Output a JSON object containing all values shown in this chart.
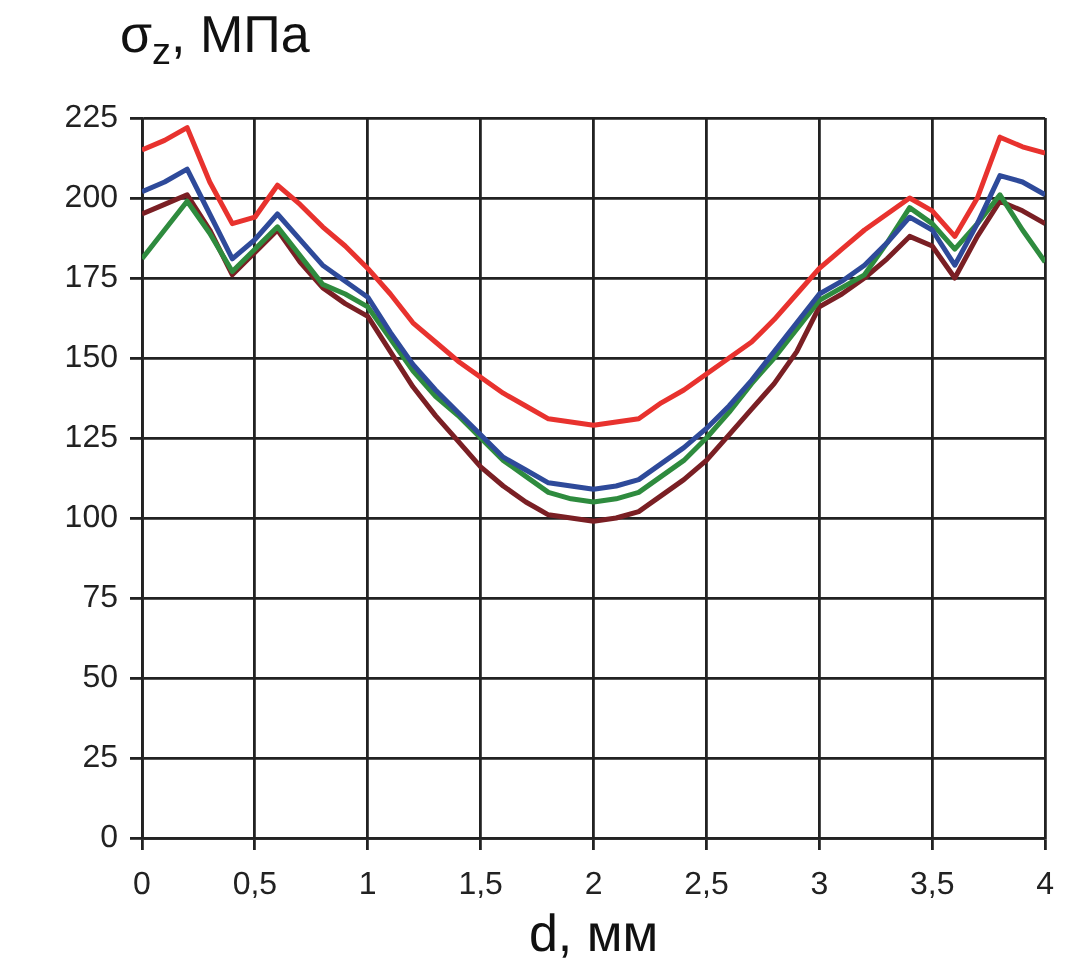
{
  "chart_data": {
    "type": "line",
    "xlabel": "d, мм",
    "ylabel": "σ$_{z}$, МПа",
    "x": [
      0,
      0.1,
      0.2,
      0.3,
      0.4,
      0.5,
      0.6,
      0.7,
      0.8,
      0.9,
      1,
      1.1,
      1.2,
      1.3,
      1.4,
      1.5,
      1.6,
      1.7,
      1.8,
      1.9,
      2,
      2.1,
      2.2,
      2.3,
      2.4,
      2.5,
      2.6,
      2.7,
      2.8,
      2.9,
      3,
      3.1,
      3.2,
      3.3,
      3.4,
      3.5,
      3.6,
      3.7,
      3.8,
      3.9,
      4
    ],
    "series": [
      {
        "color": "#e8322e",
        "values": [
          215,
          218,
          222,
          205,
          192,
          194,
          204,
          198,
          191,
          185,
          178,
          170,
          161,
          155,
          149,
          144,
          139,
          135,
          131,
          130,
          129,
          130,
          131,
          136,
          140,
          145,
          150,
          155,
          162,
          170,
          178,
          184,
          190,
          195,
          200,
          196,
          188,
          200,
          219,
          216,
          214
        ]
      },
      {
        "color": "#2e4a9a",
        "values": [
          202,
          205,
          209,
          195,
          181,
          187,
          195,
          187,
          179,
          174,
          169,
          158,
          148,
          140,
          133,
          126,
          119,
          115,
          111,
          110,
          109,
          110,
          112,
          117,
          122,
          128,
          135,
          143,
          152,
          161,
          170,
          174,
          179,
          186,
          194,
          190,
          179,
          192,
          207,
          205,
          201
        ]
      },
      {
        "color": "#2e8b3e",
        "values": [
          181,
          190,
          199,
          189,
          177,
          184,
          191,
          182,
          173,
          170,
          166,
          156,
          146,
          138,
          132,
          125,
          118,
          113,
          108,
          106,
          105,
          106,
          108,
          113,
          118,
          125,
          133,
          142,
          150,
          159,
          168,
          172,
          176,
          186,
          197,
          192,
          184,
          192,
          201,
          190,
          180
        ]
      },
      {
        "color": "#7a1f24",
        "values": [
          195,
          198,
          201,
          190,
          176,
          183,
          190,
          180,
          172,
          167,
          163,
          152,
          141,
          132,
          124,
          116,
          110,
          105,
          101,
          100,
          99,
          100,
          102,
          107,
          112,
          118,
          126,
          134,
          142,
          152,
          166,
          170,
          175,
          181,
          188,
          185,
          175,
          188,
          199,
          196,
          192
        ]
      }
    ],
    "xlim": [
      0,
      4
    ],
    "xticks": [
      0,
      {
        "value": 0.5,
        "label": "0,5"
      },
      1,
      {
        "value": 1.5,
        "label": "1,5"
      },
      2,
      {
        "value": 2.5,
        "label": "2,5"
      },
      3,
      {
        "value": 3.5,
        "label": "3,5"
      },
      4
    ],
    "ylim": [
      0,
      225
    ],
    "yticks": [
      0,
      25,
      50,
      75,
      100,
      125,
      150,
      175,
      200,
      225
    ],
    "grid": true,
    "legend": false
  }
}
